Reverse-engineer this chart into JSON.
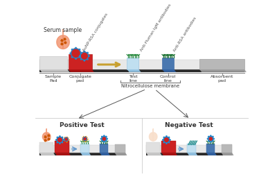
{
  "bg": "#f0f0f0",
  "white_bg": "#ffffff",
  "top_labels": {
    "serum_sample": "Serum sample",
    "aunp_rsa": "AuNP-RSA conjugates",
    "anti_human": "Anti-Human IgM antibodies",
    "anti_rsa": "Anti-RSA antibodies"
  },
  "bottom_labels": {
    "sample_pad": "Sample\nPad",
    "conjugate_pad": "Conjugate\npad",
    "test_line": "Test\nline",
    "control_line": "Control\nline",
    "absorbent_pad": "Absorbent\npad",
    "nitrocellulose": "Nitrocellulose membrane"
  },
  "test_labels": {
    "positive": "Positive Test",
    "negative": "Negative Test"
  },
  "colors": {
    "strip_light": "#e8e8e8",
    "strip_mid": "#d0d0d0",
    "strip_dark": "#b0b0b0",
    "black_bar": "#2a2a2a",
    "red_pad": "#cc2222",
    "red_pad_dark": "#aa1111",
    "light_blue": "#c0dff0",
    "dark_blue": "#4a78b0",
    "dark_blue2": "#3060a0",
    "absorbent": "#b8b8b8",
    "absorbent_dark": "#989898",
    "arrow_gold": "#c8a030",
    "green1": "#2a8a40",
    "green2": "#1a7030",
    "teal": "#1a8888",
    "drop_pos": "#f0906a",
    "drop_neg": "#f8deca",
    "bead_red": "#cc2222",
    "bead_ring": "#2288cc",
    "sunburst": "#dd9900",
    "text_dark": "#333333",
    "text_mid": "#555555",
    "bracket": "#777777",
    "tick_line": "#888888"
  }
}
